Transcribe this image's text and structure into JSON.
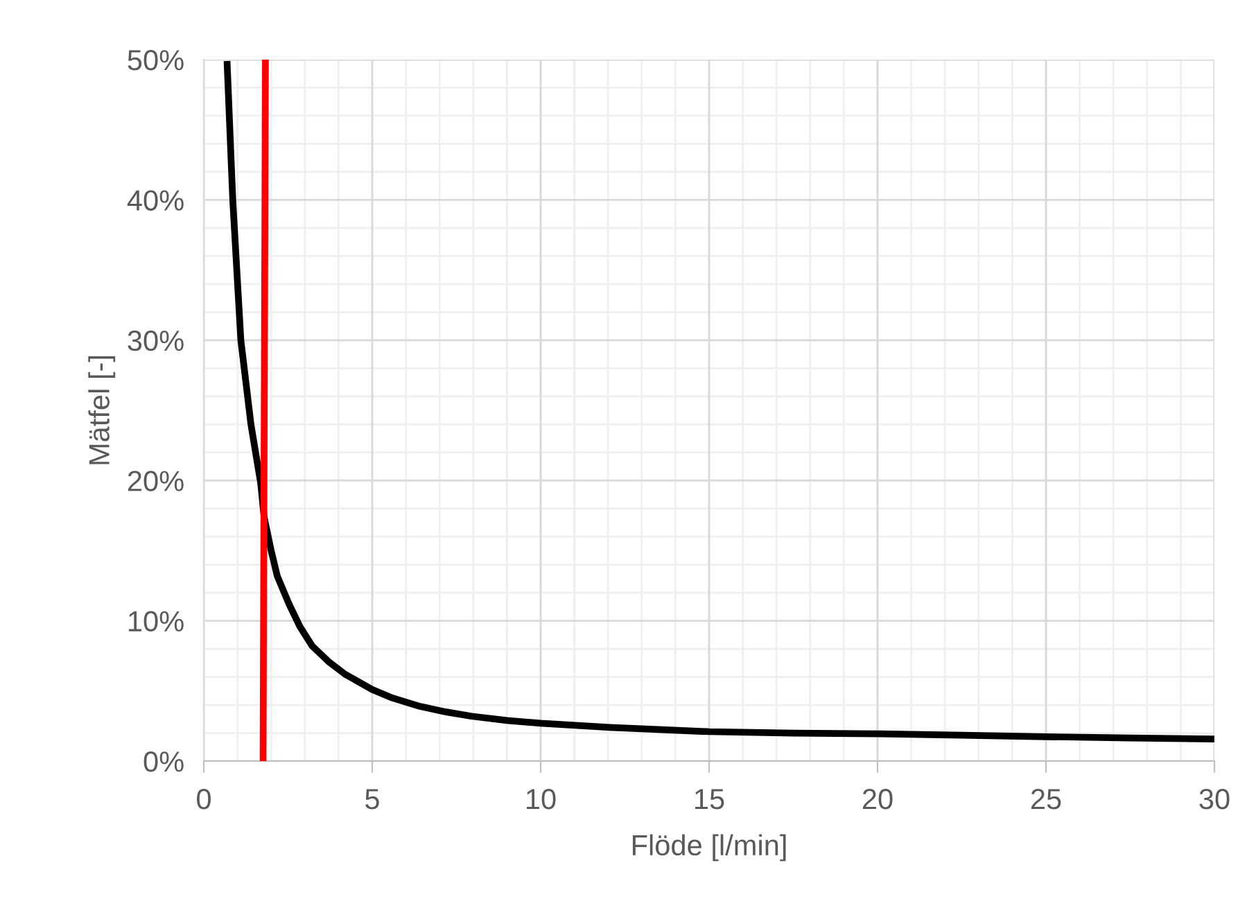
{
  "chart_data": {
    "type": "line",
    "xlabel": "Flöde [l/min]",
    "ylabel": "Mätfel [-]",
    "series": [
      {
        "color": "#000000",
        "x": [
          0.69,
          0.86,
          1.1,
          1.4,
          1.69,
          1.79,
          2.0,
          2.18,
          2.53,
          2.85,
          3.22,
          3.7,
          4.19,
          5.0,
          5.6,
          6.42,
          7.2,
          7.95,
          9.0,
          10,
          12.05,
          15,
          17.5,
          20,
          22.5,
          25,
          27.5,
          30
        ],
        "values": [
          49.9,
          40,
          30,
          24,
          19.8,
          17.4,
          15,
          13.2,
          11.2,
          9.6,
          8.2,
          7.1,
          6.2,
          5.1,
          4.5,
          3.9,
          3.5,
          3.2,
          2.9,
          2.7,
          2.4,
          2.1,
          2.0,
          1.95,
          1.85,
          1.74,
          1.65,
          1.57
        ]
      },
      {
        "color": "#ff0000",
        "x": [
          1.76,
          1.83
        ],
        "values": [
          0,
          50
        ]
      }
    ],
    "xlim": [
      0,
      30
    ],
    "xticks": [
      0,
      5,
      10,
      15,
      20,
      25,
      30
    ],
    "ylim": [
      0,
      50
    ],
    "yticks": [
      {
        "value": 0,
        "label": "0%"
      },
      {
        "value": 10,
        "label": "10%"
      },
      {
        "value": 20,
        "label": "20%"
      },
      {
        "value": 30,
        "label": "30%"
      },
      {
        "value": 40,
        "label": "40%"
      },
      {
        "value": 50,
        "label": "50%"
      }
    ],
    "grid": true,
    "marker": "none",
    "line_style": "solid"
  }
}
